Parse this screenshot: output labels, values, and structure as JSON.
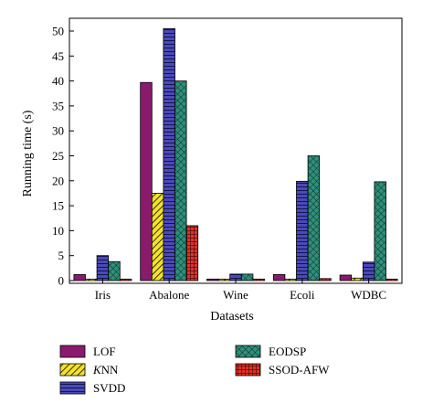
{
  "chart_data": {
    "type": "bar",
    "xlabel": "Datasets",
    "ylabel": "Running time (s)",
    "ylim": [
      0,
      52
    ],
    "yticks": [
      0,
      5,
      10,
      15,
      20,
      25,
      30,
      35,
      40,
      45,
      50
    ],
    "categories": [
      "Iris",
      "Abalone",
      "Wine",
      "Ecoli",
      "WDBC"
    ],
    "series": [
      {
        "name": "LOF",
        "color": "#8b1a6f",
        "pattern": "solid",
        "values": [
          1.2,
          39.7,
          0.3,
          1.2,
          1.1
        ]
      },
      {
        "name": "KNN",
        "color": "#f5e12a",
        "pattern": "diagonal",
        "values": [
          0.3,
          17.5,
          0.3,
          0.3,
          0.5
        ]
      },
      {
        "name": "SVDD",
        "color": "#4a4ab8",
        "pattern": "horizontal",
        "values": [
          5.0,
          50.5,
          1.3,
          19.9,
          3.7
        ]
      },
      {
        "name": "EODSP",
        "color": "#2f8f7a",
        "pattern": "crosshatch",
        "values": [
          3.8,
          40.0,
          1.3,
          25.0,
          19.8
        ]
      },
      {
        "name": "SSOD-AFW",
        "color": "#e0332b",
        "pattern": "grid",
        "values": [
          0.3,
          11.0,
          0.3,
          0.4,
          0.3
        ]
      }
    ],
    "legend": {
      "placement": "bottom",
      "italic_prefix": {
        "KNN": "K"
      }
    },
    "grid": false
  }
}
